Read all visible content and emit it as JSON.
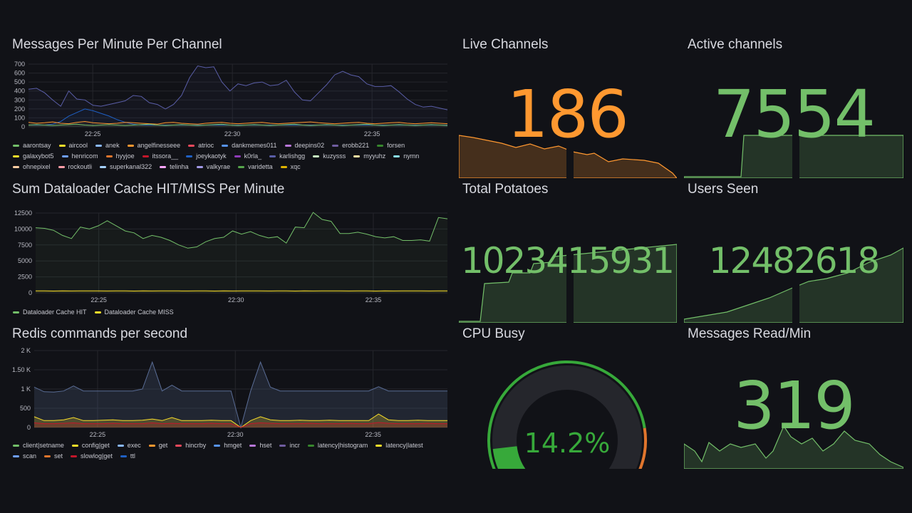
{
  "colors": {
    "green": "#73bf69",
    "orange": "#ff9830",
    "bg": "#111217"
  },
  "panels": {
    "messages_per_minute": {
      "title": "Messages Per Minute Per Channel"
    },
    "cache": {
      "title": "Sum Dataloader Cache HIT/MISS Per Minute"
    },
    "redis": {
      "title": "Redis commands per second"
    },
    "live_channels": {
      "title": "Live Channels",
      "value": "186"
    },
    "active_channels": {
      "title": "Active channels",
      "value": "7554"
    },
    "total_potatoes": {
      "title": "Total Potatoes",
      "value": "1023415931"
    },
    "users_seen": {
      "title": "Users Seen",
      "value": "12482618"
    },
    "cpu_busy": {
      "title": "CPU Busy",
      "value": "14.2%",
      "percent": 14.2
    },
    "messages_read": {
      "title": "Messages Read/Min",
      "value": "319"
    }
  },
  "chart_data": [
    {
      "type": "line",
      "title": "Messages Per Minute Per Channel",
      "xticks": [
        "22:25",
        "22:30",
        "22:35"
      ],
      "xrange": [
        22.7,
        37.7
      ],
      "ylim": [
        0,
        700
      ],
      "yticks": [
        "0",
        "100",
        "200",
        "300",
        "400",
        "500",
        "600",
        "700"
      ],
      "legend": [
        [
          "aarontsay",
          "#73bf69"
        ],
        [
          "aircool",
          "#fade2a"
        ],
        [
          "anek",
          "#8ab8ff"
        ],
        [
          "angelfinesseee",
          "#ff9830"
        ],
        [
          "atrioc",
          "#f2495c"
        ],
        [
          "dankmemes011",
          "#5794f2"
        ],
        [
          "deepins02",
          "#b877d9"
        ],
        [
          "erobb221",
          "#705da0"
        ],
        [
          "forsen",
          "#37872d"
        ],
        [
          "galaxybot5",
          "#fade2a"
        ],
        [
          "henricom",
          "#6e9fff"
        ],
        [
          "hyyjoe",
          "#e0752d"
        ],
        [
          "itssora__",
          "#c4162a"
        ],
        [
          "joeykaotyk",
          "#1f60c4"
        ],
        [
          "k0rla_",
          "#8f3bb8"
        ],
        [
          "karlishgg",
          "#5a5ea8"
        ],
        [
          "kuzysss",
          "#c8f2c2"
        ],
        [
          "myyuhz",
          "#ffe5a3"
        ],
        [
          "nymn",
          "#8ae0f0"
        ],
        [
          "ohnepixel",
          "#ffcfa3"
        ],
        [
          "rockoutli",
          "#ff9ea8"
        ],
        [
          "superkanal322",
          "#a6d2ff"
        ],
        [
          "telinha",
          "#ffa6ff"
        ],
        [
          "valkyrae",
          "#a39ae8"
        ],
        [
          "varidetta",
          "#56a64b"
        ],
        [
          "xqc",
          "#e0b400"
        ]
      ],
      "series": [
        {
          "name": "karlishgg",
          "color": "#5a5ea8",
          "values": [
            420,
            430,
            380,
            300,
            230,
            400,
            310,
            300,
            240,
            230,
            250,
            270,
            290,
            350,
            340,
            270,
            250,
            200,
            250,
            350,
            550,
            680,
            660,
            670,
            500,
            400,
            480,
            460,
            490,
            500,
            460,
            470,
            520,
            390,
            300,
            290,
            380,
            470,
            580,
            620,
            580,
            560,
            480,
            450,
            450,
            460,
            390,
            310,
            250,
            220,
            230,
            210,
            190
          ]
        },
        {
          "name": "joeykaotyk",
          "color": "#1f60c4",
          "values": [
            20,
            20,
            20,
            30,
            60,
            120,
            160,
            200,
            180,
            150,
            120,
            80,
            50,
            30,
            20,
            20,
            20,
            20,
            20,
            20,
            20,
            20,
            20,
            20,
            20,
            20,
            20,
            20,
            20,
            20,
            20,
            20,
            20,
            20,
            20,
            20,
            20,
            20,
            20,
            20,
            20,
            20,
            20,
            20,
            20,
            20,
            20,
            20,
            20,
            20,
            20,
            20,
            20
          ]
        },
        {
          "name": "angelfinesseee",
          "color": "#ff9830",
          "values": [
            50,
            40,
            45,
            55,
            40,
            35,
            50,
            60,
            45,
            40,
            35,
            40,
            50,
            45,
            40,
            35,
            30,
            45,
            50,
            40,
            35,
            30,
            40,
            45,
            50,
            40,
            35,
            40,
            45,
            50,
            40,
            35,
            40,
            45,
            50,
            55,
            45,
            40,
            35,
            40,
            45,
            50,
            40,
            35,
            40,
            45,
            50,
            40,
            35,
            40,
            45,
            40,
            35
          ]
        },
        {
          "name": "aarontsay",
          "color": "#73bf69",
          "values": [
            20,
            25,
            20,
            15,
            20,
            25,
            30,
            20,
            15,
            20,
            25,
            20,
            15,
            20,
            25,
            30,
            20,
            15,
            20,
            25,
            20,
            15,
            20,
            25,
            30,
            20,
            15,
            20,
            25,
            20,
            15,
            20,
            25,
            30,
            20,
            15,
            20,
            25,
            20,
            15,
            20,
            25,
            30,
            20,
            15,
            20,
            25,
            20,
            15,
            20,
            25,
            20,
            15
          ]
        }
      ]
    },
    {
      "type": "line",
      "title": "Sum Dataloader Cache HIT/MISS Per Minute",
      "xticks": [
        "22:25",
        "22:30",
        "22:35"
      ],
      "xrange": [
        22.7,
        37.7
      ],
      "ylim": [
        0,
        12500
      ],
      "yticks": [
        "0",
        "2500",
        "5000",
        "7500",
        "10000",
        "12500"
      ],
      "legend": [
        [
          "Dataloader Cache HIT",
          "#73bf69"
        ],
        [
          "Dataloader Cache MISS",
          "#fade2a"
        ]
      ],
      "series": [
        {
          "name": "Dataloader Cache HIT",
          "color": "#73bf69",
          "values": [
            10200,
            10100,
            9800,
            9000,
            8500,
            10300,
            10000,
            10500,
            11300,
            10500,
            9700,
            9400,
            8500,
            9000,
            8700,
            8200,
            7500,
            7000,
            7200,
            8000,
            8500,
            8700,
            9700,
            9200,
            9600,
            9000,
            8600,
            8800,
            7800,
            10300,
            10200,
            12600,
            11500,
            11200,
            9300,
            9300,
            9500,
            9200,
            8800,
            8600,
            8800,
            8200,
            8200,
            8300,
            8100,
            11800,
            11600
          ]
        },
        {
          "name": "Dataloader Cache MISS",
          "color": "#fade2a",
          "values": [
            300,
            300,
            280,
            300,
            290,
            300,
            310,
            300,
            290,
            300,
            300,
            280,
            300,
            290,
            300,
            310,
            300,
            290,
            300,
            300,
            280,
            300,
            290,
            300,
            310,
            300,
            290,
            300,
            300,
            280,
            300,
            290,
            300,
            310,
            300,
            290,
            300,
            300,
            280,
            300,
            290,
            300,
            310,
            300,
            290,
            300,
            300
          ]
        }
      ]
    },
    {
      "type": "area",
      "title": "Redis commands per second",
      "xticks": [
        "22:25",
        "22:30",
        "22:35"
      ],
      "xrange": [
        22.7,
        37.7
      ],
      "ylim": [
        0,
        2000
      ],
      "yticks": [
        "0",
        "500",
        "1 K",
        "1.50 K",
        "2 K"
      ],
      "legend": [
        [
          "client|setname",
          "#73bf69"
        ],
        [
          "config|get",
          "#fade2a"
        ],
        [
          "exec",
          "#8ab8ff"
        ],
        [
          "get",
          "#ff9830"
        ],
        [
          "hincrby",
          "#f2495c"
        ],
        [
          "hmget",
          "#5794f2"
        ],
        [
          "hset",
          "#b877d9"
        ],
        [
          "incr",
          "#705da0"
        ],
        [
          "latency|histogram",
          "#37872d"
        ],
        [
          "latency|latest",
          "#fade2a"
        ],
        [
          "scan",
          "#6e9fff"
        ],
        [
          "set",
          "#e0752d"
        ],
        [
          "slowlog|get",
          "#c4162a"
        ],
        [
          "ttl",
          "#1f60c4"
        ]
      ],
      "series": [
        {
          "name": "ttl",
          "color": "#5a6d96",
          "values": [
            1050,
            930,
            920,
            950,
            1080,
            950,
            950,
            950,
            950,
            950,
            950,
            1000,
            1700,
            950,
            1100,
            950,
            950,
            950,
            950,
            950,
            950,
            0,
            950,
            1700,
            1050,
            950,
            950,
            950,
            950,
            950,
            950,
            950,
            950,
            950,
            950,
            1060,
            950,
            950,
            950,
            950,
            950,
            950,
            950
          ]
        },
        {
          "name": "config|get",
          "color": "#fade2a",
          "values": [
            280,
            180,
            180,
            200,
            260,
            180,
            180,
            190,
            200,
            180,
            180,
            190,
            220,
            180,
            260,
            180,
            180,
            180,
            190,
            180,
            180,
            0,
            180,
            280,
            200,
            180,
            180,
            190,
            180,
            180,
            190,
            180,
            180,
            180,
            180,
            350,
            200,
            180,
            180,
            190,
            180,
            180,
            180
          ]
        },
        {
          "name": "slowlog|get",
          "color": "#c4162a",
          "values": [
            120,
            100,
            100,
            110,
            120,
            100,
            100,
            100,
            110,
            100,
            100,
            100,
            120,
            100,
            110,
            100,
            100,
            100,
            110,
            100,
            100,
            0,
            100,
            120,
            110,
            100,
            100,
            100,
            110,
            100,
            100,
            100,
            110,
            100,
            100,
            130,
            110,
            100,
            100,
            100,
            110,
            100,
            100
          ]
        }
      ]
    }
  ]
}
